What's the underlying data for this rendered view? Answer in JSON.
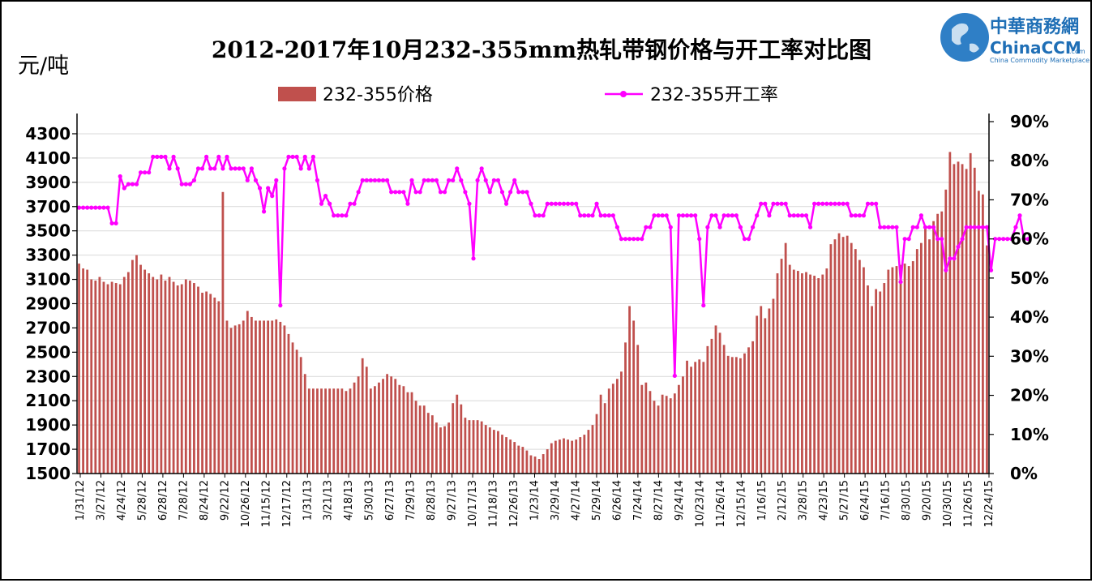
{
  "logo": {
    "chinese": "中華商務網",
    "english": "ChinaCCM",
    "suffix": ".com",
    "tagline": "China Commodity Marketplace"
  },
  "colors": {
    "bar": "#c0504d",
    "bar_stroke": "#8b2523",
    "line": "#ff00ff",
    "gridline": "#d9d9d9"
  },
  "chart_data": {
    "type": "bar",
    "title": "2012-2017年10月232-355mm热轧带钢价格与开工率对比图",
    "ylabel": "元/吨",
    "y2label": "",
    "ylim": [
      1500,
      4400
    ],
    "y_ticks": [
      "1500",
      "1700",
      "1900",
      "2100",
      "2300",
      "2500",
      "2700",
      "2900",
      "3100",
      "3300",
      "3500",
      "3700",
      "3900",
      "4100",
      "4300"
    ],
    "y2lim": [
      0,
      90
    ],
    "y2_ticks": [
      "0%",
      "10%",
      "20%",
      "30%",
      "40%",
      "50%",
      "60%",
      "70%",
      "80%",
      "90%"
    ],
    "x_tick_labels": [
      "1/31/12",
      "3/27/12",
      "4/24/12",
      "5/28/12",
      "6/28/12",
      "7/28/12",
      "8/24/12",
      "9/22/12",
      "10/26/12",
      "11/15/12",
      "12/17/12",
      "1/31/13",
      "3/21/13",
      "4/18/13",
      "5/30/13",
      "6/27/13",
      "7/29/13",
      "8/28/13",
      "9/27/13",
      "10/17/13",
      "11/18/13",
      "12/26/13",
      "1/23/14",
      "3/29/14",
      "4/27/14",
      "5/29/14",
      "6/26/14",
      "7/24/14",
      "8/27/14",
      "9/24/14",
      "10/23/14",
      "11/26/14",
      "12/15/14",
      "1/16/15",
      "2/12/15",
      "3/28/15",
      "4/23/15",
      "5/27/15",
      "6/24/15",
      "7/16/15",
      "8/30/15",
      "9/20/15",
      "10/30/15",
      "11/26/15",
      "12/24/15"
    ],
    "series": [
      {
        "name": "232-355价格",
        "kind": "bar",
        "values": [
          3230,
          3190,
          3180,
          3100,
          3090,
          3120,
          3080,
          3060,
          3080,
          3070,
          3060,
          3120,
          3160,
          3260,
          3300,
          3220,
          3180,
          3150,
          3120,
          3100,
          3140,
          3090,
          3120,
          3080,
          3050,
          3060,
          3100,
          3090,
          3070,
          3040,
          2990,
          3000,
          2980,
          2950,
          2920,
          3820,
          2760,
          2700,
          2720,
          2730,
          2760,
          2840,
          2790,
          2760,
          2760,
          2760,
          2760,
          2760,
          2770,
          2750,
          2720,
          2650,
          2580,
          2520,
          2460,
          2320,
          2200,
          2200,
          2200,
          2200,
          2200,
          2200,
          2200,
          2200,
          2200,
          2180,
          2200,
          2250,
          2300,
          2450,
          2380,
          2200,
          2220,
          2250,
          2280,
          2320,
          2300,
          2280,
          2230,
          2220,
          2170,
          2170,
          2100,
          2060,
          2060,
          2000,
          1980,
          1920,
          1880,
          1890,
          1920,
          2080,
          2150,
          2070,
          1960,
          1940,
          1940,
          1940,
          1930,
          1900,
          1880,
          1860,
          1850,
          1820,
          1800,
          1780,
          1760,
          1730,
          1720,
          1690,
          1650,
          1640,
          1620,
          1660,
          1700,
          1750,
          1770,
          1780,
          1790,
          1780,
          1770,
          1780,
          1800,
          1820,
          1860,
          1900,
          1990,
          2150,
          2080,
          2200,
          2240,
          2280,
          2340,
          2580,
          2880,
          2760,
          2560,
          2230,
          2250,
          2180,
          2100,
          2060,
          2150,
          2140,
          2120,
          2160,
          2230,
          2300,
          2430,
          2380,
          2420,
          2440,
          2420,
          2550,
          2610,
          2720,
          2660,
          2560,
          2470,
          2460,
          2460,
          2450,
          2490,
          2540,
          2590,
          2800,
          2880,
          2780,
          2860,
          2940,
          3150,
          3270,
          3400,
          3220,
          3180,
          3170,
          3150,
          3160,
          3140,
          3130,
          3110,
          3140,
          3190,
          3390,
          3430,
          3480,
          3450,
          3460,
          3400,
          3350,
          3260,
          3200,
          3050,
          2880,
          3020,
          3000,
          3070,
          3180,
          3200,
          3210,
          3220,
          3230,
          3210,
          3250,
          3350,
          3400,
          3520,
          3430,
          3580,
          3640,
          3660,
          3840,
          4150,
          4050,
          4070,
          4050,
          4010,
          4140,
          4020,
          3830,
          3800,
          3380
        ]
      },
      {
        "name": "232-355开工率",
        "kind": "line",
        "values": [
          68,
          68,
          68,
          68,
          68,
          68,
          68,
          68,
          64,
          64,
          76,
          73,
          74,
          74,
          74,
          77,
          77,
          77,
          81,
          81,
          81,
          81,
          78,
          81,
          78,
          74,
          74,
          74,
          75,
          78,
          78,
          81,
          78,
          78,
          81,
          78,
          81,
          78,
          78,
          78,
          78,
          75,
          78,
          75,
          73,
          67,
          73,
          71,
          75,
          43,
          78,
          81,
          81,
          81,
          78,
          81,
          78,
          81,
          75,
          69,
          71,
          69,
          66,
          66,
          66,
          66,
          69,
          69,
          72,
          75,
          75,
          75,
          75,
          75,
          75,
          75,
          72,
          72,
          72,
          72,
          69,
          75,
          72,
          72,
          75,
          75,
          75,
          75,
          72,
          72,
          75,
          75,
          78,
          75,
          72,
          69,
          55,
          75,
          78,
          75,
          72,
          75,
          75,
          72,
          69,
          72,
          75,
          72,
          72,
          72,
          69,
          66,
          66,
          66,
          69,
          69,
          69,
          69,
          69,
          69,
          69,
          69,
          66,
          66,
          66,
          66,
          69,
          66,
          66,
          66,
          66,
          63,
          60,
          60,
          60,
          60,
          60,
          60,
          63,
          63,
          66,
          66,
          66,
          66,
          63,
          25,
          66,
          66,
          66,
          66,
          66,
          60,
          43,
          63,
          66,
          66,
          63,
          66,
          66,
          66,
          66,
          63,
          60,
          60,
          63,
          66,
          69,
          69,
          66,
          69,
          69,
          69,
          69,
          66,
          66,
          66,
          66,
          66,
          63,
          69,
          69,
          69,
          69,
          69,
          69,
          69,
          69,
          69,
          66,
          66,
          66,
          66,
          69,
          69,
          69,
          63,
          63,
          63,
          63,
          63,
          49,
          60,
          60,
          63,
          63,
          66,
          63,
          63,
          63,
          60,
          60,
          52,
          55,
          55,
          58,
          60,
          63,
          63,
          63,
          63,
          63,
          63,
          52,
          60,
          60,
          60,
          60,
          60,
          63,
          66,
          60,
          60
        ]
      }
    ],
    "legend": "top-center",
    "grid": true
  }
}
